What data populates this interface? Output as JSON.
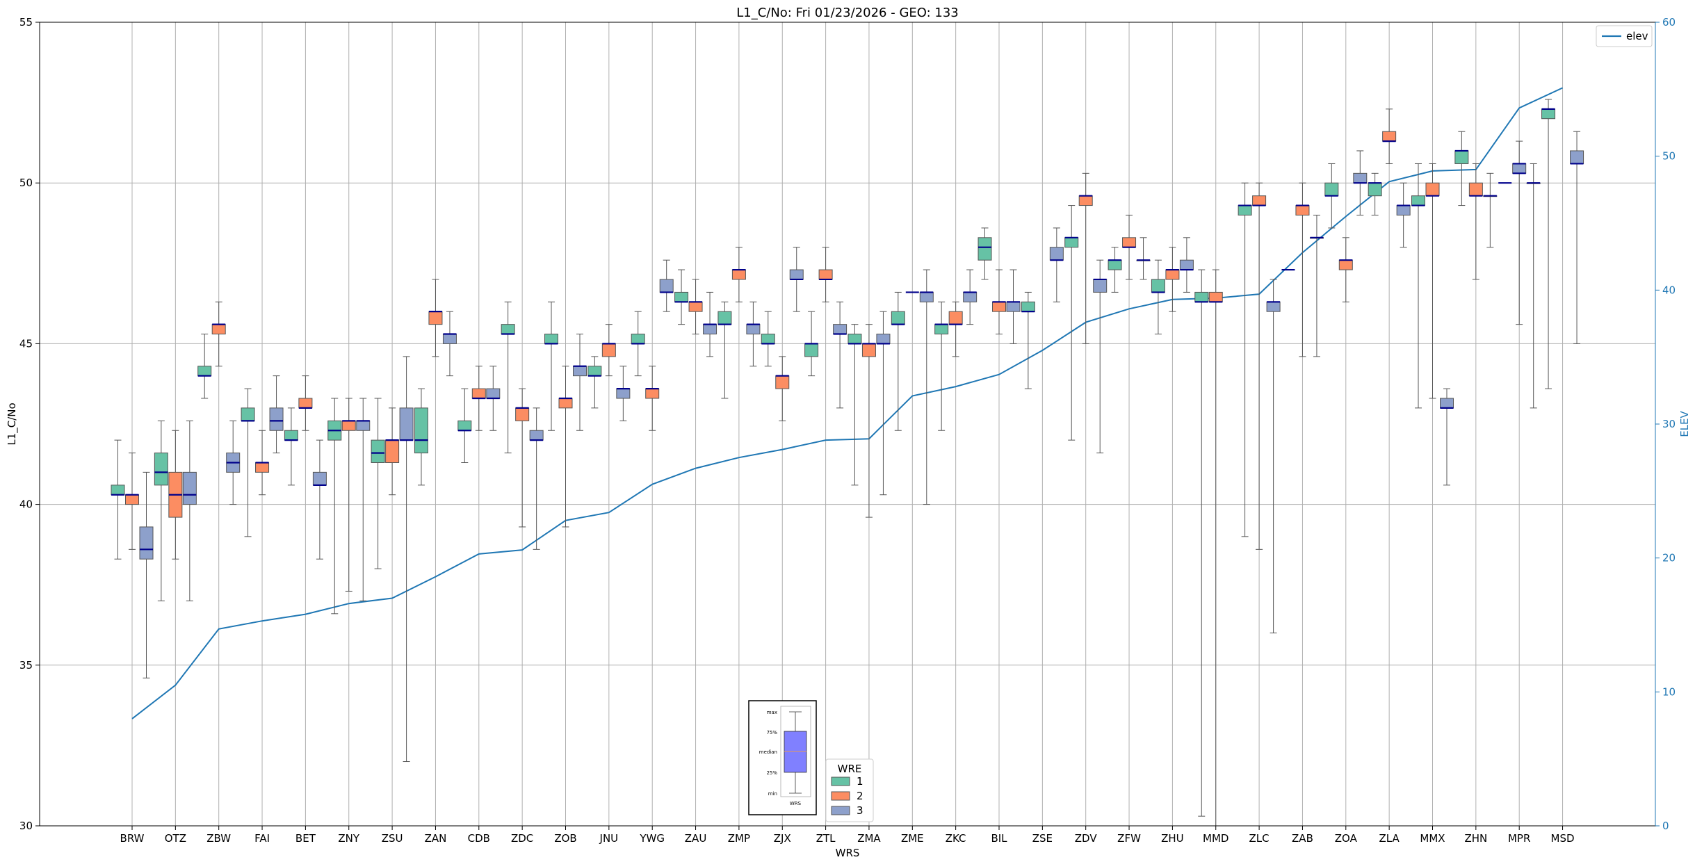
{
  "chart_data": {
    "type": "box",
    "title": "L1_C/No: Fri 01/23/2026 - GEO: 133",
    "xlabel": "WRS",
    "ylabel": "L1_C/No",
    "y2label": "ELEV",
    "ylim": [
      30,
      55
    ],
    "yticks": [
      30,
      35,
      40,
      45,
      50,
      55
    ],
    "y2lim": [
      0,
      60
    ],
    "y2ticks": [
      0,
      10,
      20,
      30,
      40,
      50,
      60
    ],
    "grid": true,
    "categories": [
      "BRW",
      "OTZ",
      "ZBW",
      "FAI",
      "BET",
      "ZNY",
      "ZSU",
      "ZAN",
      "CDB",
      "ZDC",
      "ZOB",
      "JNU",
      "YWG",
      "ZAU",
      "ZMP",
      "ZJX",
      "ZTL",
      "ZMA",
      "ZME",
      "ZKC",
      "BIL",
      "ZSE",
      "ZDV",
      "ZFW",
      "ZHU",
      "MMD",
      "ZLC",
      "ZAB",
      "ZOA",
      "ZLA",
      "MMX",
      "ZHN",
      "MPR",
      "MSD"
    ],
    "elev_legend": "elev",
    "elev": [
      8,
      10.5,
      14.7,
      15.3,
      15.8,
      16.6,
      17,
      18.6,
      20.3,
      20.6,
      22.8,
      23.4,
      25.5,
      26.7,
      27.5,
      28.1,
      28.8,
      28.9,
      32.1,
      32.8,
      33.7,
      35.5,
      37.6,
      38.6,
      39.3,
      39.4,
      39.7,
      42.8,
      45.5,
      48.1,
      48.9,
      49,
      53.6,
      55.1
    ],
    "legend_title": "WRE",
    "series": [
      {
        "name": "1",
        "color": "#66c2a5",
        "boxes": [
          {
            "cat": "BRW",
            "min": 38.3,
            "q1": 40.3,
            "med": 40.3,
            "q3": 40.6,
            "max": 42.0
          },
          {
            "cat": "OTZ",
            "min": 37.0,
            "q1": 40.6,
            "med": 41.0,
            "q3": 41.6,
            "max": 42.6
          },
          {
            "cat": "ZBW",
            "min": 43.3,
            "q1": 44.0,
            "med": 44.0,
            "q3": 44.3,
            "max": 45.3
          },
          {
            "cat": "FAI",
            "min": 39.0,
            "q1": 42.6,
            "med": 42.6,
            "q3": 43.0,
            "max": 43.6
          },
          {
            "cat": "BET",
            "min": 40.6,
            "q1": 42.0,
            "med": 42.0,
            "q3": 42.3,
            "max": 43.0
          },
          {
            "cat": "ZNY",
            "min": 36.6,
            "q1": 42.0,
            "med": 42.3,
            "q3": 42.6,
            "max": 43.3
          },
          {
            "cat": "ZSU",
            "min": 38.0,
            "q1": 41.3,
            "med": 41.6,
            "q3": 42.0,
            "max": 43.3
          },
          {
            "cat": "ZAN",
            "min": 40.6,
            "q1": 41.6,
            "med": 42.0,
            "q3": 43.0,
            "max": 43.6
          },
          {
            "cat": "CDB",
            "min": 41.3,
            "q1": 42.3,
            "med": 42.3,
            "q3": 42.6,
            "max": 43.6
          },
          {
            "cat": "ZDC",
            "min": 41.6,
            "q1": 45.3,
            "med": 45.3,
            "q3": 45.6,
            "max": 46.3
          },
          {
            "cat": "ZOB",
            "min": 42.3,
            "q1": 45.0,
            "med": 45.0,
            "q3": 45.3,
            "max": 46.3
          },
          {
            "cat": "JNU",
            "min": 43.0,
            "q1": 44.0,
            "med": 44.0,
            "q3": 44.3,
            "max": 44.6
          },
          {
            "cat": "YWG",
            "min": 44.0,
            "q1": 45.0,
            "med": 45.0,
            "q3": 45.3,
            "max": 46.0
          },
          {
            "cat": "ZAU",
            "min": 45.6,
            "q1": 46.3,
            "med": 46.3,
            "q3": 46.6,
            "max": 47.3
          },
          {
            "cat": "ZMP",
            "min": 43.3,
            "q1": 45.6,
            "med": 45.6,
            "q3": 46.0,
            "max": 46.3
          },
          {
            "cat": "ZJX",
            "min": 44.3,
            "q1": 45.0,
            "med": 45.0,
            "q3": 45.3,
            "max": 46.0
          },
          {
            "cat": "ZTL",
            "min": 44.0,
            "q1": 44.6,
            "med": 45.0,
            "q3": 45.0,
            "max": 46.0
          },
          {
            "cat": "ZMA",
            "min": 40.6,
            "q1": 45.0,
            "med": 45.0,
            "q3": 45.3,
            "max": 45.6
          },
          {
            "cat": "ZME",
            "min": 42.3,
            "q1": 45.6,
            "med": 45.6,
            "q3": 46.0,
            "max": 46.6
          },
          {
            "cat": "ZKC",
            "min": 42.3,
            "q1": 45.3,
            "med": 45.6,
            "q3": 45.6,
            "max": 46.3
          },
          {
            "cat": "BIL",
            "min": 47.0,
            "q1": 47.6,
            "med": 48.0,
            "q3": 48.3,
            "max": 48.6
          },
          {
            "cat": "ZSE",
            "min": 43.6,
            "q1": 46.0,
            "med": 46.0,
            "q3": 46.3,
            "max": 46.6
          },
          {
            "cat": "ZDV",
            "min": 42.0,
            "q1": 48.0,
            "med": 48.3,
            "q3": 48.3,
            "max": 49.3
          },
          {
            "cat": "ZFW",
            "min": 46.6,
            "q1": 47.3,
            "med": 47.6,
            "q3": 47.6,
            "max": 48.0
          },
          {
            "cat": "ZHU",
            "min": 45.3,
            "q1": 46.6,
            "med": 46.6,
            "q3": 47.0,
            "max": 47.6
          },
          {
            "cat": "MMD",
            "min": 30.3,
            "q1": 46.3,
            "med": 46.3,
            "q3": 46.6,
            "max": 47.3
          },
          {
            "cat": "ZLC",
            "min": 39.0,
            "q1": 49.0,
            "med": 49.3,
            "q3": 49.3,
            "max": 50.0
          },
          {
            "cat": "ZOA",
            "min": 48.6,
            "q1": 49.6,
            "med": 49.6,
            "q3": 50.0,
            "max": 50.6
          },
          {
            "cat": "ZLA",
            "min": 49.0,
            "q1": 49.6,
            "med": 50.0,
            "q3": 50.0,
            "max": 50.3
          },
          {
            "cat": "MMX",
            "min": 43.0,
            "q1": 49.3,
            "med": 49.3,
            "q3": 49.6,
            "max": 50.6
          },
          {
            "cat": "ZHN",
            "min": 49.3,
            "q1": 50.6,
            "med": 51.0,
            "q3": 51.0,
            "max": 51.6
          },
          {
            "cat": "MSD",
            "min": 43.6,
            "q1": 52.0,
            "med": 52.3,
            "q3": 52.3,
            "max": 52.6
          }
        ]
      },
      {
        "name": "2",
        "color": "#fc8d62",
        "boxes": [
          {
            "cat": "BRW",
            "min": 38.6,
            "q1": 40.0,
            "med": 40.3,
            "q3": 40.3,
            "max": 41.6
          },
          {
            "cat": "OTZ",
            "min": 38.3,
            "q1": 39.6,
            "med": 40.3,
            "q3": 41.0,
            "max": 42.3
          },
          {
            "cat": "ZBW",
            "min": 44.3,
            "q1": 45.3,
            "med": 45.6,
            "q3": 45.6,
            "max": 46.3
          },
          {
            "cat": "FAI",
            "min": 40.3,
            "q1": 41.0,
            "med": 41.3,
            "q3": 41.3,
            "max": 42.3
          },
          {
            "cat": "BET",
            "min": 42.3,
            "q1": 43.0,
            "med": 43.0,
            "q3": 43.3,
            "max": 44.0
          },
          {
            "cat": "ZNY",
            "min": 37.3,
            "q1": 42.3,
            "med": 42.6,
            "q3": 42.6,
            "max": 43.3
          },
          {
            "cat": "ZSU",
            "min": 40.3,
            "q1": 41.3,
            "med": 42.0,
            "q3": 42.0,
            "max": 43.0
          },
          {
            "cat": "ZAN",
            "min": 44.6,
            "q1": 45.6,
            "med": 46.0,
            "q3": 46.0,
            "max": 47.0
          },
          {
            "cat": "CDB",
            "min": 42.3,
            "q1": 43.3,
            "med": 43.3,
            "q3": 43.6,
            "max": 44.3
          },
          {
            "cat": "ZDC",
            "min": 39.3,
            "q1": 42.6,
            "med": 43.0,
            "q3": 43.0,
            "max": 43.6
          },
          {
            "cat": "ZOB",
            "min": 39.3,
            "q1": 43.0,
            "med": 43.3,
            "q3": 43.3,
            "max": 44.3
          },
          {
            "cat": "JNU",
            "min": 44.0,
            "q1": 44.6,
            "med": 45.0,
            "q3": 45.0,
            "max": 45.6
          },
          {
            "cat": "YWG",
            "min": 42.3,
            "q1": 43.3,
            "med": 43.6,
            "q3": 43.6,
            "max": 44.3
          },
          {
            "cat": "ZAU",
            "min": 45.3,
            "q1": 46.0,
            "med": 46.3,
            "q3": 46.3,
            "max": 47.0
          },
          {
            "cat": "ZMP",
            "min": 46.3,
            "q1": 47.0,
            "med": 47.3,
            "q3": 47.3,
            "max": 48.0
          },
          {
            "cat": "ZJX",
            "min": 42.6,
            "q1": 43.6,
            "med": 44.0,
            "q3": 44.0,
            "max": 44.6
          },
          {
            "cat": "ZTL",
            "min": 46.3,
            "q1": 47.0,
            "med": 47.0,
            "q3": 47.3,
            "max": 48.0
          },
          {
            "cat": "ZMA",
            "min": 39.6,
            "q1": 44.6,
            "med": 45.0,
            "q3": 45.0,
            "max": 45.6
          },
          {
            "cat": "ZKC",
            "min": 44.6,
            "q1": 45.6,
            "med": 45.6,
            "q3": 46.0,
            "max": 46.3
          },
          {
            "cat": "BIL",
            "min": 45.3,
            "q1": 46.0,
            "med": 46.3,
            "q3": 46.3,
            "max": 47.3
          },
          {
            "cat": "ZDV",
            "min": 45.0,
            "q1": 49.3,
            "med": 49.6,
            "q3": 49.6,
            "max": 50.3
          },
          {
            "cat": "ZFW",
            "min": 47.0,
            "q1": 48.0,
            "med": 48.0,
            "q3": 48.3,
            "max": 49.0
          },
          {
            "cat": "ZHU",
            "min": 46.0,
            "q1": 47.0,
            "med": 47.3,
            "q3": 47.3,
            "max": 48.0
          },
          {
            "cat": "MMD",
            "min": 30.0,
            "q1": 46.3,
            "med": 46.3,
            "q3": 46.6,
            "max": 47.3
          },
          {
            "cat": "ZLC",
            "min": 38.6,
            "q1": 49.3,
            "med": 49.3,
            "q3": 49.6,
            "max": 50.0
          },
          {
            "cat": "ZAB",
            "min": 44.6,
            "q1": 49.0,
            "med": 49.3,
            "q3": 49.3,
            "max": 50.0
          },
          {
            "cat": "ZOA",
            "min": 46.3,
            "q1": 47.3,
            "med": 47.6,
            "q3": 47.6,
            "max": 48.3
          },
          {
            "cat": "ZLA",
            "min": 50.6,
            "q1": 51.3,
            "med": 51.3,
            "q3": 51.6,
            "max": 52.3
          },
          {
            "cat": "MMX",
            "min": 43.3,
            "q1": 49.6,
            "med": 49.6,
            "q3": 50.0,
            "max": 50.6
          },
          {
            "cat": "ZHN",
            "min": 47.0,
            "q1": 49.6,
            "med": 49.6,
            "q3": 50.0,
            "max": 50.6
          }
        ]
      },
      {
        "name": "3",
        "color": "#8da0cb",
        "boxes": [
          {
            "cat": "BRW",
            "min": 34.6,
            "q1": 38.3,
            "med": 38.6,
            "q3": 39.3,
            "max": 41.0
          },
          {
            "cat": "OTZ",
            "min": 37.0,
            "q1": 40.0,
            "med": 40.3,
            "q3": 41.0,
            "max": 42.6
          },
          {
            "cat": "ZBW",
            "min": 40.0,
            "q1": 41.0,
            "med": 41.3,
            "q3": 41.6,
            "max": 42.6
          },
          {
            "cat": "FAI",
            "min": 41.6,
            "q1": 42.3,
            "med": 42.6,
            "q3": 43.0,
            "max": 44.0
          },
          {
            "cat": "BET",
            "min": 38.3,
            "q1": 40.6,
            "med": 40.6,
            "q3": 41.0,
            "max": 42.0
          },
          {
            "cat": "ZNY",
            "min": 37.0,
            "q1": 42.3,
            "med": 42.6,
            "q3": 42.6,
            "max": 43.3
          },
          {
            "cat": "ZSU",
            "min": 32.0,
            "q1": 42.0,
            "med": 42.0,
            "q3": 43.0,
            "max": 44.6
          },
          {
            "cat": "ZAN",
            "min": 44.0,
            "q1": 45.0,
            "med": 45.3,
            "q3": 45.3,
            "max": 46.0
          },
          {
            "cat": "CDB",
            "min": 42.3,
            "q1": 43.3,
            "med": 43.3,
            "q3": 43.6,
            "max": 44.3
          },
          {
            "cat": "ZDC",
            "min": 38.6,
            "q1": 42.0,
            "med": 42.0,
            "q3": 42.3,
            "max": 43.0
          },
          {
            "cat": "ZOB",
            "min": 42.3,
            "q1": 44.0,
            "med": 44.3,
            "q3": 44.3,
            "max": 45.3
          },
          {
            "cat": "JNU",
            "min": 42.6,
            "q1": 43.3,
            "med": 43.6,
            "q3": 43.6,
            "max": 44.3
          },
          {
            "cat": "YWG",
            "min": 46.0,
            "q1": 46.6,
            "med": 46.6,
            "q3": 47.0,
            "max": 47.6
          },
          {
            "cat": "ZAU",
            "min": 44.6,
            "q1": 45.3,
            "med": 45.6,
            "q3": 45.6,
            "max": 46.6
          },
          {
            "cat": "ZMP",
            "min": 44.3,
            "q1": 45.3,
            "med": 45.6,
            "q3": 45.6,
            "max": 46.3
          },
          {
            "cat": "ZJX",
            "min": 46.0,
            "q1": 47.0,
            "med": 47.0,
            "q3": 47.3,
            "max": 48.0
          },
          {
            "cat": "ZTL",
            "min": 43.0,
            "q1": 45.3,
            "med": 45.3,
            "q3": 45.6,
            "max": 46.3
          },
          {
            "cat": "ZMA",
            "min": 40.3,
            "q1": 45.0,
            "med": 45.0,
            "q3": 45.3,
            "max": 46.0
          },
          {
            "cat": "ZME",
            "min": 40.0,
            "q1": 46.3,
            "med": 46.6,
            "q3": 46.6,
            "max": 47.3
          },
          {
            "cat": "ZKC",
            "min": 45.6,
            "q1": 46.3,
            "med": 46.6,
            "q3": 46.6,
            "max": 47.3
          },
          {
            "cat": "BIL",
            "min": 45.0,
            "q1": 46.0,
            "med": 46.3,
            "q3": 46.3,
            "max": 47.3
          },
          {
            "cat": "ZSE",
            "min": 46.3,
            "q1": 47.6,
            "med": 47.6,
            "q3": 48.0,
            "max": 48.6
          },
          {
            "cat": "ZDV",
            "min": 41.6,
            "q1": 46.6,
            "med": 47.0,
            "q3": 47.0,
            "max": 47.6
          },
          {
            "cat": "ZFW",
            "min": 47.0,
            "q1": 47.6,
            "med": 47.6,
            "q3": 47.6,
            "max": 48.3
          },
          {
            "cat": "ZHU",
            "min": 46.6,
            "q1": 47.3,
            "med": 47.3,
            "q3": 47.6,
            "max": 48.3
          },
          {
            "cat": "ZLC",
            "min": 36.0,
            "q1": 46.0,
            "med": 46.3,
            "q3": 46.3,
            "max": 47.0
          },
          {
            "cat": "ZAB",
            "min": 44.6,
            "q1": 48.3,
            "med": 48.3,
            "q3": 48.3,
            "max": 49.0
          },
          {
            "cat": "ZOA",
            "min": 49.0,
            "q1": 50.0,
            "med": 50.0,
            "q3": 50.3,
            "max": 51.0
          },
          {
            "cat": "ZLA",
            "min": 48.0,
            "q1": 49.0,
            "med": 49.3,
            "q3": 49.3,
            "max": 50.0
          },
          {
            "cat": "MMX",
            "min": 40.6,
            "q1": 43.0,
            "med": 43.0,
            "q3": 43.3,
            "max": 43.6
          },
          {
            "cat": "ZHN",
            "min": 48.0,
            "q1": 49.6,
            "med": 49.6,
            "q3": 49.6,
            "max": 50.3
          },
          {
            "cat": "MPR",
            "min": 43.0,
            "q1": 50.0,
            "med": 50.0,
            "q3": 50.0,
            "max": 50.6
          },
          {
            "cat": "MSD",
            "min": 45.0,
            "q1": 50.6,
            "med": 50.6,
            "q3": 51.0,
            "max": 51.6
          }
        ]
      }
    ],
    "extra_medians": [
      {
        "cat": "ZAB",
        "series": "1",
        "value": 47.3
      },
      {
        "cat": "MPR",
        "series": "1",
        "value": 50.0
      },
      {
        "cat": "MPR",
        "series": "2",
        "value": 50.3
      },
      {
        "cat": "ZME",
        "series": "2",
        "value": 46.6
      }
    ],
    "extra_boxes": [
      {
        "cat": "MPR",
        "series": "2",
        "color": "#8da0cb",
        "min": 45.6,
        "q1": 50.3,
        "med": 50.6,
        "q3": 50.6,
        "max": 51.3
      }
    ],
    "key_box": {
      "labels": [
        "max",
        "75%",
        "median",
        "25%",
        "min"
      ],
      "xlabel": "WRS"
    }
  }
}
